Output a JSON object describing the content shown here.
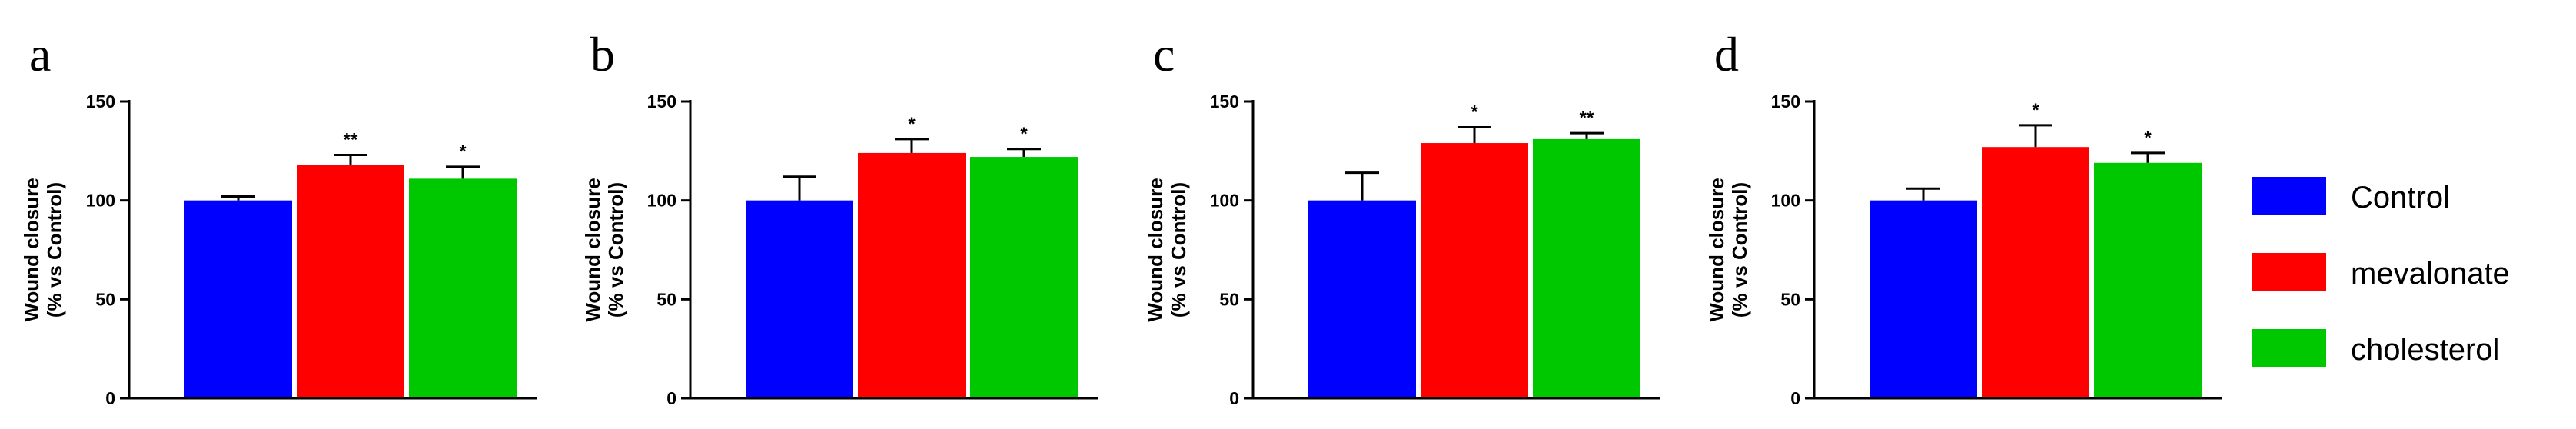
{
  "chart_data": [
    {
      "type": "bar",
      "panel_label": "a",
      "ylabel": [
        "Wound closure",
        "(% vs Control)"
      ],
      "ylim": [
        0,
        150
      ],
      "yticks": [
        0,
        50,
        100,
        150
      ],
      "categories": [
        "Control",
        "mevalonate",
        "cholesterol"
      ],
      "values": [
        100,
        118,
        111
      ],
      "errors": [
        2,
        5,
        6
      ],
      "significance": [
        "",
        "**",
        "*"
      ]
    },
    {
      "type": "bar",
      "panel_label": "b",
      "ylabel": [
        "Wound closure",
        "(% vs Control)"
      ],
      "ylim": [
        0,
        150
      ],
      "yticks": [
        0,
        50,
        100,
        150
      ],
      "categories": [
        "Control",
        "mevalonate",
        "cholesterol"
      ],
      "values": [
        100,
        124,
        122
      ],
      "errors": [
        12,
        7,
        4
      ],
      "significance": [
        "",
        "*",
        "*"
      ]
    },
    {
      "type": "bar",
      "panel_label": "c",
      "ylabel": [
        "Wound closure",
        "(% vs Control)"
      ],
      "ylim": [
        0,
        150
      ],
      "yticks": [
        0,
        50,
        100,
        150
      ],
      "categories": [
        "Control",
        "mevalonate",
        "cholesterol"
      ],
      "values": [
        100,
        129,
        131
      ],
      "errors": [
        14,
        8,
        3
      ],
      "significance": [
        "",
        "*",
        "**"
      ]
    },
    {
      "type": "bar",
      "panel_label": "d",
      "ylabel": [
        "Wound closure",
        "(% vs Control)"
      ],
      "ylim": [
        0,
        150
      ],
      "yticks": [
        0,
        50,
        100,
        150
      ],
      "categories": [
        "Control",
        "mevalonate",
        "cholesterol"
      ],
      "values": [
        100,
        127,
        119
      ],
      "errors": [
        6,
        11,
        5
      ],
      "significance": [
        "",
        "*",
        "*"
      ]
    }
  ],
  "legend": {
    "placement": "right",
    "entries": [
      {
        "label": "Control",
        "color": "#0000ff"
      },
      {
        "label": "mevalonate",
        "color": "#ff0000"
      },
      {
        "label": "cholesterol",
        "color": "#00c800"
      }
    ]
  }
}
